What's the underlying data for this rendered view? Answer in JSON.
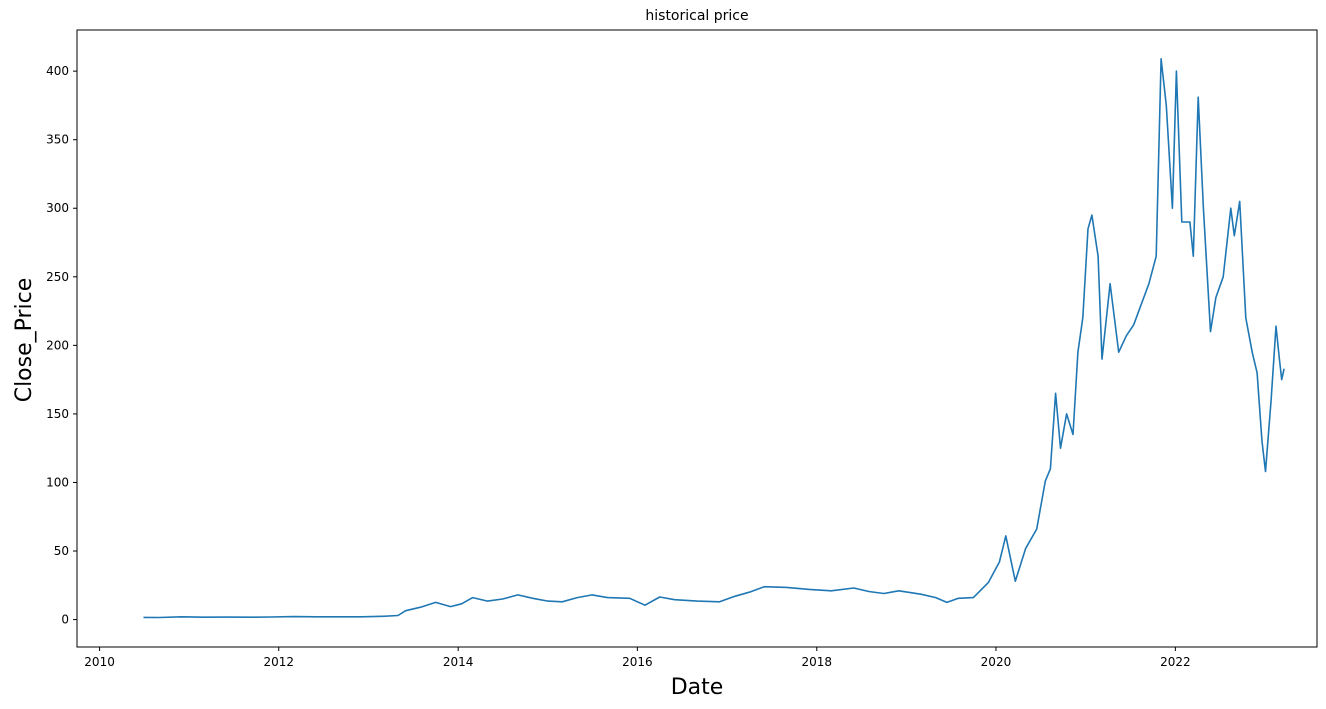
{
  "chart_data": {
    "type": "line",
    "title": "historical price",
    "xlabel": "Date",
    "ylabel": "Close_Price",
    "xlim": [
      "2009-10-01",
      "2023-08-01"
    ],
    "ylim": [
      -20,
      430
    ],
    "x_ticks": [
      "2010",
      "2012",
      "2014",
      "2016",
      "2018",
      "2020",
      "2022"
    ],
    "y_ticks": [
      0,
      50,
      100,
      150,
      200,
      250,
      300,
      350,
      400
    ],
    "grid": false,
    "legend": "none",
    "series": [
      {
        "color": "#1f77b4",
        "points": [
          [
            "2010-06-29",
            1.6
          ],
          [
            "2010-09-01",
            1.5
          ],
          [
            "2010-12-01",
            2.0
          ],
          [
            "2011-03-01",
            1.7
          ],
          [
            "2011-06-01",
            1.8
          ],
          [
            "2011-09-01",
            1.7
          ],
          [
            "2011-12-01",
            1.9
          ],
          [
            "2012-03-01",
            2.2
          ],
          [
            "2012-06-01",
            2.0
          ],
          [
            "2012-09-01",
            2.0
          ],
          [
            "2012-12-01",
            2.0
          ],
          [
            "2013-03-01",
            2.4
          ],
          [
            "2013-05-01",
            3.0
          ],
          [
            "2013-06-01",
            6.5
          ],
          [
            "2013-08-01",
            9.0
          ],
          [
            "2013-10-01",
            12.5
          ],
          [
            "2013-12-01",
            9.5
          ],
          [
            "2014-01-15",
            11.5
          ],
          [
            "2014-03-01",
            16.0
          ],
          [
            "2014-05-01",
            13.5
          ],
          [
            "2014-07-01",
            15.0
          ],
          [
            "2014-09-01",
            18.0
          ],
          [
            "2014-11-01",
            15.5
          ],
          [
            "2015-01-01",
            13.5
          ],
          [
            "2015-03-01",
            13.0
          ],
          [
            "2015-05-01",
            16.0
          ],
          [
            "2015-07-01",
            18.0
          ],
          [
            "2015-09-01",
            16.0
          ],
          [
            "2015-12-01",
            15.5
          ],
          [
            "2016-02-01",
            10.5
          ],
          [
            "2016-04-01",
            16.5
          ],
          [
            "2016-06-01",
            14.5
          ],
          [
            "2016-09-01",
            13.5
          ],
          [
            "2016-12-01",
            13.0
          ],
          [
            "2017-02-01",
            17.0
          ],
          [
            "2017-04-01",
            20.0
          ],
          [
            "2017-06-01",
            24.0
          ],
          [
            "2017-09-01",
            23.5
          ],
          [
            "2017-12-01",
            22.0
          ],
          [
            "2018-03-01",
            21.0
          ],
          [
            "2018-06-01",
            23.0
          ],
          [
            "2018-08-01",
            20.5
          ],
          [
            "2018-10-01",
            19.0
          ],
          [
            "2018-12-01",
            21.0
          ],
          [
            "2019-03-01",
            18.5
          ],
          [
            "2019-05-01",
            16.0
          ],
          [
            "2019-06-15",
            12.5
          ],
          [
            "2019-08-01",
            15.5
          ],
          [
            "2019-10-01",
            16.0
          ],
          [
            "2019-12-01",
            27.0
          ],
          [
            "2020-01-15",
            42.0
          ],
          [
            "2020-02-10",
            61.0
          ],
          [
            "2020-03-20",
            28.0
          ],
          [
            "2020-05-01",
            52.0
          ],
          [
            "2020-06-15",
            66.0
          ],
          [
            "2020-07-20",
            101.0
          ],
          [
            "2020-08-10",
            110.0
          ],
          [
            "2020-08-31",
            165.0
          ],
          [
            "2020-09-20",
            125.0
          ],
          [
            "2020-10-15",
            150.0
          ],
          [
            "2020-11-10",
            135.0
          ],
          [
            "2020-11-30",
            195.0
          ],
          [
            "2020-12-20",
            220.0
          ],
          [
            "2021-01-10",
            285.0
          ],
          [
            "2021-01-26",
            295.0
          ],
          [
            "2021-02-20",
            265.0
          ],
          [
            "2021-03-08",
            190.0
          ],
          [
            "2021-04-10",
            245.0
          ],
          [
            "2021-05-15",
            195.0
          ],
          [
            "2021-06-15",
            207.0
          ],
          [
            "2021-07-15",
            215.0
          ],
          [
            "2021-08-15",
            230.0
          ],
          [
            "2021-09-15",
            245.0
          ],
          [
            "2021-10-15",
            265.0
          ],
          [
            "2021-11-04",
            409.0
          ],
          [
            "2021-11-25",
            375.0
          ],
          [
            "2021-12-20",
            300.0
          ],
          [
            "2022-01-05",
            400.0
          ],
          [
            "2022-01-27",
            290.0
          ],
          [
            "2022-03-01",
            290.0
          ],
          [
            "2022-03-15",
            265.0
          ],
          [
            "2022-04-04",
            381.0
          ],
          [
            "2022-04-25",
            300.0
          ],
          [
            "2022-05-24",
            210.0
          ],
          [
            "2022-06-15",
            235.0
          ],
          [
            "2022-07-15",
            250.0
          ],
          [
            "2022-08-15",
            300.0
          ],
          [
            "2022-08-29",
            280.0
          ],
          [
            "2022-09-20",
            305.0
          ],
          [
            "2022-10-15",
            220.0
          ],
          [
            "2022-11-10",
            195.0
          ],
          [
            "2022-11-30",
            180.0
          ],
          [
            "2022-12-20",
            130.0
          ],
          [
            "2023-01-03",
            108.0
          ],
          [
            "2023-01-26",
            160.0
          ],
          [
            "2023-02-15",
            214.0
          ],
          [
            "2023-03-01",
            190.0
          ],
          [
            "2023-03-10",
            175.0
          ],
          [
            "2023-03-20",
            183.0
          ]
        ]
      }
    ]
  }
}
